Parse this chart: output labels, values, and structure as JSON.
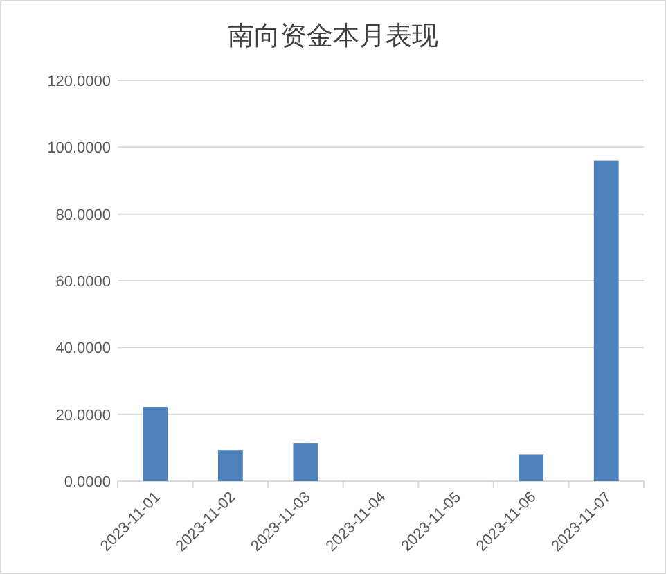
{
  "chart_data": {
    "type": "bar",
    "title": "南向资金本月表现",
    "categories": [
      "2023-11-01",
      "2023-11-02",
      "2023-11-03",
      "2023-11-04",
      "2023-11-05",
      "2023-11-06",
      "2023-11-07"
    ],
    "values": [
      22.2,
      9.3,
      11.4,
      0,
      0,
      8.0,
      96.0
    ],
    "color": "#4f81bd",
    "ylim": [
      0,
      120
    ],
    "yticks": [
      {
        "value": 0,
        "label": "0.0000"
      },
      {
        "value": 20,
        "label": "20.0000"
      },
      {
        "value": 40,
        "label": "40.0000"
      },
      {
        "value": 60,
        "label": "60.0000"
      },
      {
        "value": 80,
        "label": "80.0000"
      },
      {
        "value": 100,
        "label": "100.0000"
      },
      {
        "value": 120,
        "label": "120.0000"
      }
    ],
    "grid": "y"
  }
}
